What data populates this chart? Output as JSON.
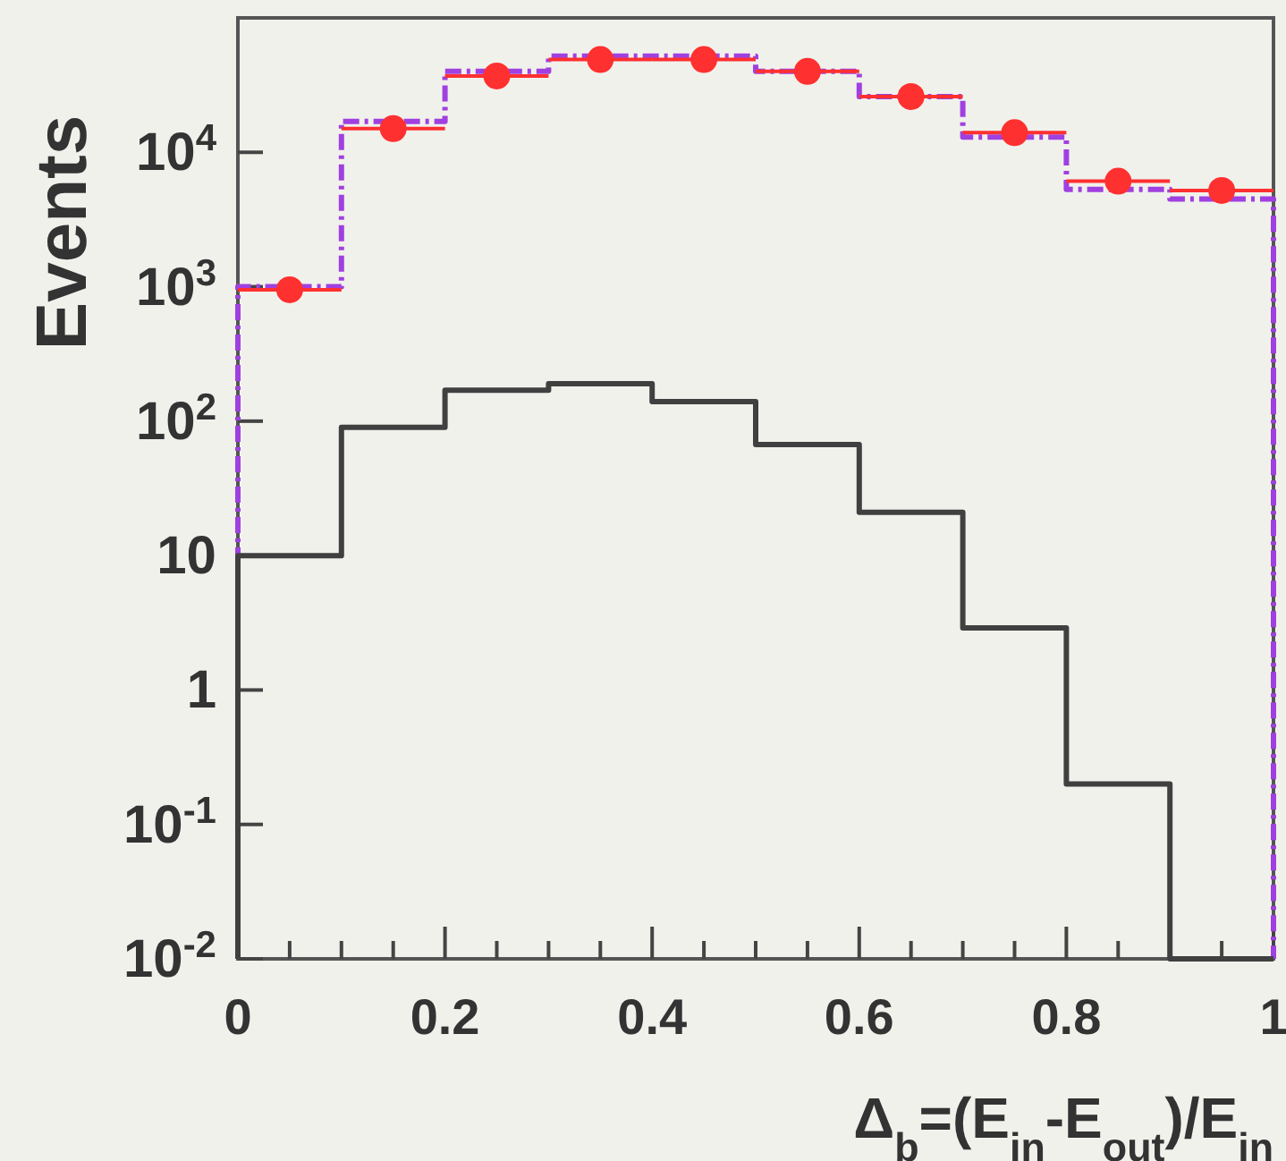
{
  "chart_data": {
    "type": "histogram",
    "xlabel": "Δ$_{b}$=(E$_{in}$-E$_{out}$)/E$_{in}$",
    "ylabel": "Events",
    "bins": [
      0,
      0.1,
      0.2,
      0.3,
      0.4,
      0.5,
      0.6,
      0.7,
      0.8,
      0.9,
      1
    ],
    "series": [
      {
        "color": "#a040e0",
        "line_style": "dashed",
        "values": [
          1000,
          17000,
          40000,
          52000,
          52000,
          40000,
          26000,
          13000,
          5300,
          4500
        ]
      },
      {
        "type": "scatter",
        "color": "#ff3030",
        "marker": "circle",
        "x": [
          0.05,
          0.15,
          0.25,
          0.35,
          0.45,
          0.55,
          0.65,
          0.75,
          0.85,
          0.95
        ],
        "values": [
          950,
          15000,
          37000,
          49000,
          49000,
          40000,
          26000,
          14000,
          6100,
          5200
        ],
        "xerrors": [
          0.05,
          0.05,
          0.05,
          0.05,
          0.05,
          0.05,
          0.05,
          0.05,
          0.05,
          0.05
        ]
      },
      {
        "color": "#404040",
        "line_style": "solid",
        "values": [
          10,
          90,
          170,
          190,
          140,
          67,
          21,
          2.9,
          0.2,
          0.01
        ]
      }
    ],
    "xlim": [
      0,
      1
    ],
    "xticks": [
      0,
      {
        "value": 0.05,
        "label": null
      },
      {
        "value": 0.1,
        "label": null
      },
      {
        "value": 0.15,
        "label": null
      },
      0.2,
      {
        "value": 0.25,
        "label": null
      },
      {
        "value": 0.3,
        "label": null
      },
      {
        "value": 0.35,
        "label": null
      },
      0.4,
      {
        "value": 0.45,
        "label": null
      },
      {
        "value": 0.5,
        "label": null
      },
      {
        "value": 0.55,
        "label": null
      },
      0.6,
      {
        "value": 0.65,
        "label": null
      },
      {
        "value": 0.7,
        "label": null
      },
      {
        "value": 0.75,
        "label": null
      },
      0.8,
      {
        "value": 0.85,
        "label": null
      },
      {
        "value": 0.9,
        "label": null
      },
      {
        "value": 0.95,
        "label": null
      },
      1
    ],
    "ylim": [
      0.01,
      100000
    ],
    "yticks": [
      {
        "value": 0.01,
        "label": "10$^{-2}$"
      },
      {
        "value": 0.1,
        "label": "10$^{-1}$"
      },
      1,
      10,
      {
        "value": 100,
        "label": "10$^{2}$"
      },
      {
        "value": 1000,
        "label": "10$^{3}$"
      },
      {
        "value": 10000,
        "label": "10$^{4}$"
      }
    ],
    "log": true,
    "grid": false
  }
}
